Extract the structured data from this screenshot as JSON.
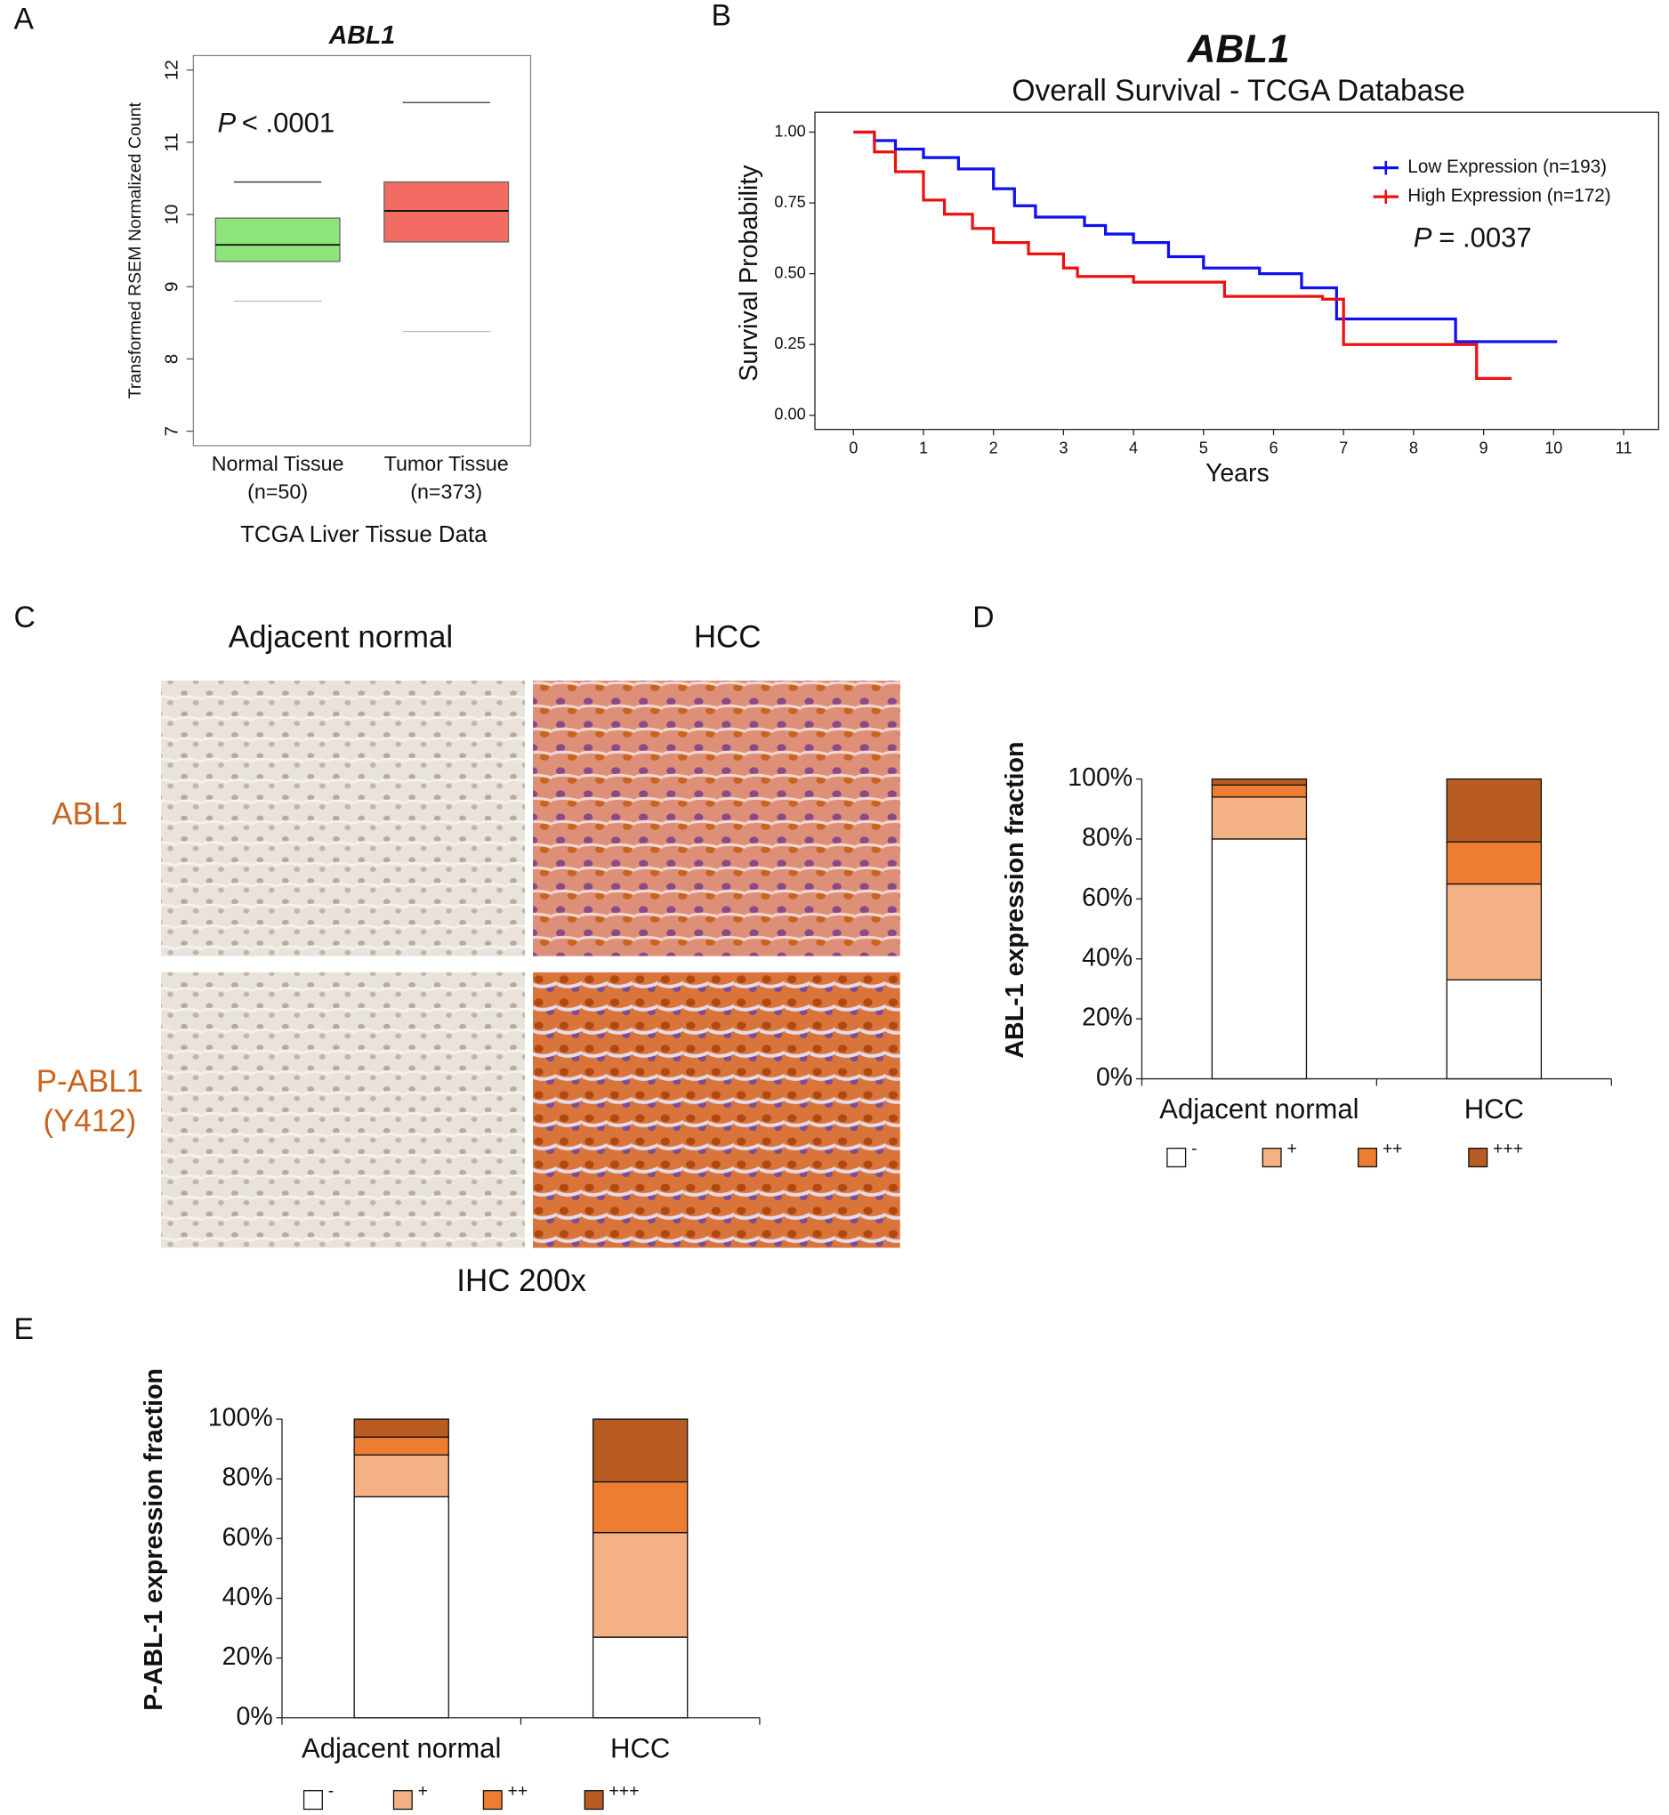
{
  "chart_data": [
    {
      "type": "box",
      "panel_label": "A",
      "title": "ABL1",
      "p_symbol": "P",
      "p_value": "< .0001",
      "ylabel": "Transformed RSEM Normalized Count",
      "xlabel": "TCGA Liver Tissue Data",
      "categories": [
        "Normal Tissue",
        "Tumor Tissue"
      ],
      "category_notes": [
        "(n=50)",
        "(n=373)"
      ],
      "colors": [
        "#8ee67a",
        "#f26c64"
      ],
      "q1": [
        9.35,
        9.62
      ],
      "median": [
        9.58,
        10.05
      ],
      "q3": [
        9.95,
        10.45
      ],
      "whisker_low": [
        8.8,
        8.38
      ],
      "whisker_high": [
        10.45,
        11.55
      ],
      "ylim": [
        6.8,
        12.2
      ],
      "yticks": [
        7,
        8,
        9,
        10,
        11,
        12
      ]
    },
    {
      "type": "line",
      "panel_label": "B",
      "title": "ABL1",
      "subtitle": "Overall Survival - TCGA Database",
      "xlabel": "Years",
      "ylabel": "Survival Probability",
      "p_symbol": "P",
      "p_value": "= .0037",
      "xlim": [
        -0.55,
        11.5
      ],
      "xticks": [
        0,
        1,
        2,
        3,
        4,
        5,
        6,
        7,
        8,
        9,
        10,
        11
      ],
      "ylim": [
        -0.05,
        1.07
      ],
      "yticks": [
        {
          "value": 0,
          "label": "0.00"
        },
        {
          "value": 0.25,
          "label": "0.25"
        },
        {
          "value": 0.5,
          "label": "0.50"
        },
        {
          "value": 0.75,
          "label": "0.75"
        },
        {
          "value": 1,
          "label": "1.00"
        }
      ],
      "legend": "top-right",
      "series": [
        {
          "name": "Low Expression (n=193)",
          "color": "#1010ee",
          "x": [
            0,
            0.3,
            0.3,
            0.6,
            0.6,
            1,
            1,
            1.5,
            1.5,
            2,
            2,
            2.3,
            2.3,
            2.6,
            2.6,
            3.3,
            3.3,
            3.6,
            3.6,
            4,
            4,
            4.5,
            4.5,
            5,
            5,
            5.8,
            5.8,
            6.4,
            6.4,
            6.9,
            6.9,
            8.6,
            8.6,
            10.05
          ],
          "values": [
            1,
            1,
            0.97,
            0.97,
            0.94,
            0.94,
            0.91,
            0.91,
            0.87,
            0.87,
            0.8,
            0.8,
            0.74,
            0.74,
            0.7,
            0.7,
            0.67,
            0.67,
            0.64,
            0.64,
            0.61,
            0.61,
            0.56,
            0.56,
            0.52,
            0.52,
            0.5,
            0.5,
            0.45,
            0.45,
            0.34,
            0.34,
            0.26,
            0.26
          ]
        },
        {
          "name": "High Expression (n=172)",
          "color": "#ee1010",
          "x": [
            0,
            0.3,
            0.3,
            0.6,
            0.6,
            1,
            1,
            1.3,
            1.3,
            1.7,
            1.7,
            2,
            2,
            2.5,
            2.5,
            3,
            3,
            3.2,
            3.2,
            4,
            4,
            5.3,
            5.3,
            6.7,
            6.7,
            7,
            7,
            8.9,
            8.9,
            9.4
          ],
          "values": [
            1,
            1,
            0.93,
            0.93,
            0.86,
            0.86,
            0.76,
            0.76,
            0.71,
            0.71,
            0.66,
            0.66,
            0.61,
            0.61,
            0.57,
            0.57,
            0.52,
            0.52,
            0.49,
            0.49,
            0.47,
            0.47,
            0.42,
            0.42,
            0.41,
            0.41,
            0.25,
            0.25,
            0.13,
            0.13
          ]
        }
      ]
    },
    {
      "type": "image_grid",
      "panel_label": "C",
      "columns": [
        "Adjacent normal",
        "HCC"
      ],
      "rows": [
        [
          "ABL1"
        ],
        [
          "P-ABL1",
          "(Y412)"
        ]
      ],
      "row_color": "#c8641e",
      "caption": "IHC 200x"
    },
    {
      "type": "stacked_bar",
      "panel_label": "D",
      "ylabel": "ABL-1 expression fraction",
      "categories": [
        "Adjacent normal",
        "HCC"
      ],
      "ylim": [
        0,
        100
      ],
      "yticks": [
        {
          "value": 0,
          "label": "0%"
        },
        {
          "value": 20,
          "label": "20%"
        },
        {
          "value": 40,
          "label": "40%"
        },
        {
          "value": 60,
          "label": "60%"
        },
        {
          "value": 80,
          "label": "80%"
        },
        {
          "value": 100,
          "label": "100%"
        }
      ],
      "series": [
        {
          "name": "-",
          "color": "#ffffff",
          "values": [
            80,
            33
          ]
        },
        {
          "name": "+",
          "color": "#f4b183",
          "values": [
            14,
            32
          ]
        },
        {
          "name": "++",
          "color": "#ed7d31",
          "values": [
            4,
            14
          ]
        },
        {
          "name": "+++",
          "color": "#b85c24",
          "values": [
            2,
            21
          ]
        }
      ]
    },
    {
      "type": "stacked_bar",
      "panel_label": "E",
      "ylabel": "P-ABL-1 expression fraction",
      "categories": [
        "Adjacent normal",
        "HCC"
      ],
      "ylim": [
        0,
        100
      ],
      "yticks": [
        {
          "value": 0,
          "label": "0%"
        },
        {
          "value": 20,
          "label": "20%"
        },
        {
          "value": 40,
          "label": "40%"
        },
        {
          "value": 60,
          "label": "60%"
        },
        {
          "value": 80,
          "label": "80%"
        },
        {
          "value": 100,
          "label": "100%"
        }
      ],
      "series": [
        {
          "name": "-",
          "color": "#ffffff",
          "values": [
            74,
            27
          ]
        },
        {
          "name": "+",
          "color": "#f4b183",
          "values": [
            14,
            35
          ]
        },
        {
          "name": "++",
          "color": "#ed7d31",
          "values": [
            6,
            17
          ]
        },
        {
          "name": "+++",
          "color": "#b85c24",
          "values": [
            6,
            21
          ]
        }
      ]
    }
  ]
}
